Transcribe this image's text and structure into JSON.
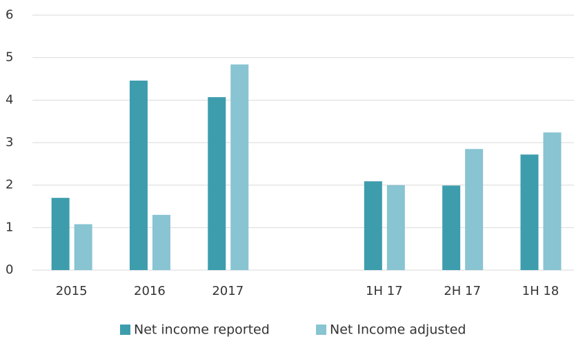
{
  "chart_data": {
    "type": "bar",
    "categories": [
      "2015",
      "2016",
      "2017",
      null,
      "1H 17",
      "2H 17",
      "1H 18"
    ],
    "series": [
      {
        "name": "Net income reported",
        "color": "#3d9dad",
        "values": [
          1.7,
          4.46,
          4.07,
          null,
          2.09,
          1.99,
          2.72
        ]
      },
      {
        "name": "Net Income adjusted",
        "color": "#88c4d2",
        "values": [
          1.08,
          1.3,
          4.84,
          null,
          2.0,
          2.85,
          3.24
        ]
      }
    ],
    "ylim": [
      0,
      6
    ],
    "yticks": [
      0,
      1,
      2,
      3,
      4,
      5,
      6
    ],
    "grid": true,
    "legend": "bottom"
  }
}
